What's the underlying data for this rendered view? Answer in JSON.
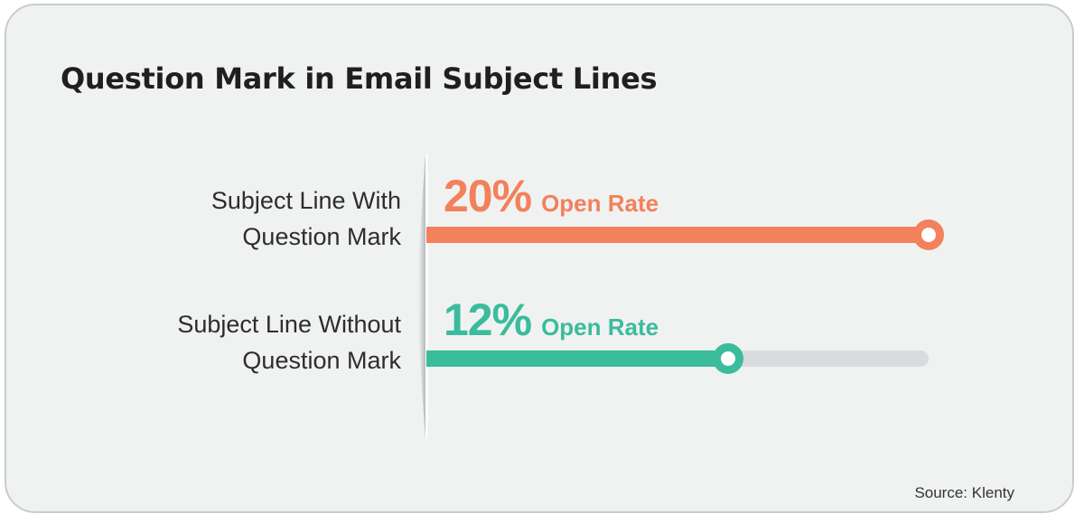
{
  "page": {
    "background": "#ffffff"
  },
  "card": {
    "background": "#F0F2F1",
    "border_color": "#C7CBD3",
    "title": "Question Mark in Email Subject Lines",
    "title_color": "#1F1F1F",
    "source": "Source: Klenty",
    "source_color": "#333333"
  },
  "chart_data": {
    "type": "bar",
    "orientation": "horizontal",
    "title": "Question Mark in Email Subject Lines",
    "categories": [
      "Subject Line With Question Mark",
      "Subject Line Without Question Mark"
    ],
    "values": [
      20,
      12
    ],
    "value_labels": [
      "20%",
      "12%"
    ],
    "unit": "Open Rate",
    "xlim": [
      0,
      20
    ],
    "series_colors": [
      "#F2815C",
      "#3BBC9C"
    ],
    "track_color": "#D9DCDF",
    "label_color": "#2D2D2D",
    "grid": false,
    "legend": "none",
    "source": "Source: Klenty"
  },
  "rows": [
    {
      "label_line1": "Subject Line With",
      "label_line2": "Question Mark",
      "value": "20%",
      "unit": "Open Rate"
    },
    {
      "label_line1": "Subject Line Without",
      "label_line2": "Question Mark",
      "value": "12%",
      "unit": "Open Rate"
    }
  ]
}
